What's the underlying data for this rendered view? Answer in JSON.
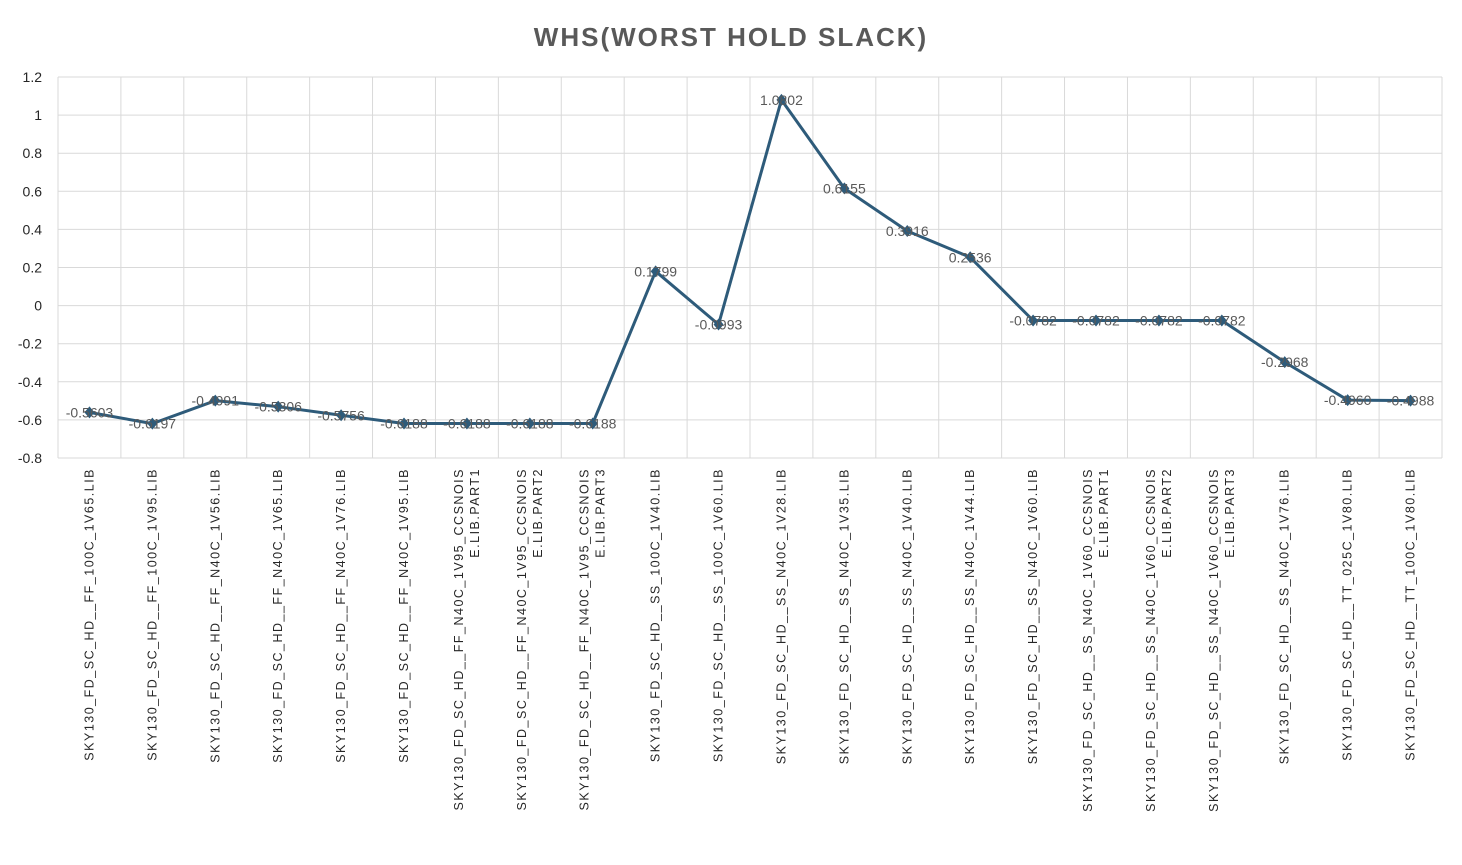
{
  "chart_data": {
    "type": "line",
    "title": "WHS(WORST HOLD SLACK)",
    "xlabel": "",
    "ylabel": "",
    "ylim": [
      -0.8,
      1.2
    ],
    "yticks": [
      "1.2",
      "1",
      "0.8",
      "0.6",
      "0.4",
      "0.2",
      "0",
      "-0.2",
      "-0.4",
      "-0.6",
      "-0.8"
    ],
    "ytick_values": [
      1.2,
      1,
      0.8,
      0.6,
      0.4,
      0.2,
      0,
      -0.2,
      -0.4,
      -0.6,
      -0.8
    ],
    "grid": true,
    "legend": "none",
    "colors": {
      "line": "#2e5b7a",
      "grid": "#d9d9d9",
      "text": "#262626",
      "title": "#595959"
    },
    "categories": [
      "SKY130_FD_SC_HD__FF_100C_1V65.LIB",
      "SKY130_FD_SC_HD__FF_100C_1V95.LIB",
      "SKY130_FD_SC_HD__FF_N40C_1V56.LIB",
      "SKY130_FD_SC_HD__FF_N40C_1V65.LIB",
      "SKY130_FD_SC_HD__FF_N40C_1V76.LIB",
      "SKY130_FD_SC_HD__FF_N40C_1V95.LIB",
      "SKY130_FD_SC_HD__FF_N40C_1V95_CCSNOISE.LIB.PART1",
      "SKY130_FD_SC_HD__FF_N40C_1V95_CCSNOISE.LIB.PART2",
      "SKY130_FD_SC_HD__FF_N40C_1V95_CCSNOISE.LIB.PART3",
      "SKY130_FD_SC_HD__SS_100C_1V40.LIB",
      "SKY130_FD_SC_HD__SS_100C_1V60.LIB",
      "SKY130_FD_SC_HD__SS_N40C_1V28.LIB",
      "SKY130_FD_SC_HD__SS_N40C_1V35.LIB",
      "SKY130_FD_SC_HD__SS_N40C_1V40.LIB",
      "SKY130_FD_SC_HD__SS_N40C_1V44.LIB",
      "SKY130_FD_SC_HD__SS_N40C_1V60.LIB",
      "SKY130_FD_SC_HD__SS_N40C_1V60_CCSNOISE.LIB.PART1",
      "SKY130_FD_SC_HD__SS_N40C_1V60_CCSNOISE.LIB.PART2",
      "SKY130_FD_SC_HD__SS_N40C_1V60_CCSNOISE.LIB.PART3",
      "SKY130_FD_SC_HD__SS_N40C_1V76.LIB",
      "SKY130_FD_SC_HD__TT_025C_1V80.LIB",
      "SKY130_FD_SC_HD__TT_100C_1V80.LIB"
    ],
    "category_lines": [
      [
        "SKY130_FD_SC_HD__FF_100C_1V65.LIB"
      ],
      [
        "SKY130_FD_SC_HD__FF_100C_1V95.LIB"
      ],
      [
        "SKY130_FD_SC_HD__FF_N40C_1V56.LIB"
      ],
      [
        "SKY130_FD_SC_HD__FF_N40C_1V65.LIB"
      ],
      [
        "SKY130_FD_SC_HD__FF_N40C_1V76.LIB"
      ],
      [
        "SKY130_FD_SC_HD__FF_N40C_1V95.LIB"
      ],
      [
        "SKY130_FD_SC_HD__FF_N40C_1V95_CCSNOIS",
        "E.LIB.PART1"
      ],
      [
        "SKY130_FD_SC_HD__FF_N40C_1V95_CCSNOIS",
        "E.LIB.PART2"
      ],
      [
        "SKY130_FD_SC_HD__FF_N40C_1V95_CCSNOIS",
        "E.LIB.PART3"
      ],
      [
        "SKY130_FD_SC_HD__SS_100C_1V40.LIB"
      ],
      [
        "SKY130_FD_SC_HD__SS_100C_1V60.LIB"
      ],
      [
        "SKY130_FD_SC_HD__SS_N40C_1V28.LIB"
      ],
      [
        "SKY130_FD_SC_HD__SS_N40C_1V35.LIB"
      ],
      [
        "SKY130_FD_SC_HD__SS_N40C_1V40.LIB"
      ],
      [
        "SKY130_FD_SC_HD__SS_N40C_1V44.LIB"
      ],
      [
        "SKY130_FD_SC_HD__SS_N40C_1V60.LIB"
      ],
      [
        "SKY130_FD_SC_HD__SS_N40C_1V60_CCSNOIS",
        "E.LIB.PART1"
      ],
      [
        "SKY130_FD_SC_HD__SS_N40C_1V60_CCSNOIS",
        "E.LIB.PART2"
      ],
      [
        "SKY130_FD_SC_HD__SS_N40C_1V60_CCSNOIS",
        "E.LIB.PART3"
      ],
      [
        "SKY130_FD_SC_HD__SS_N40C_1V76.LIB"
      ],
      [
        "SKY130_FD_SC_HD__TT_025C_1V80.LIB"
      ],
      [
        "SKY130_FD_SC_HD__TT_100C_1V80.LIB"
      ]
    ],
    "series": [
      {
        "values": [
          -0.5603,
          -0.6197,
          -0.4991,
          -0.5306,
          -0.5756,
          -0.6188,
          -0.6188,
          -0.6188,
          -0.6188,
          0.1799,
          -0.0993,
          1.0802,
          0.6155,
          0.3916,
          0.2536,
          -0.0782,
          -0.0782,
          -0.0782,
          -0.0782,
          -0.2968,
          -0.496,
          -0.4988
        ],
        "labels": [
          "-0.5603",
          "-0.6197",
          "-0.4991",
          "-0.5306",
          "-0.5756",
          "-0.6188",
          "-0.6188",
          "-0.6188",
          "-0.6188",
          "0.1799",
          "-0.0993",
          "1.0802",
          "0.6155",
          "0.3916",
          "0.2536",
          "-0.0782",
          "-0.0782",
          "-0.0782",
          "-0.0782",
          "-0.2968",
          "-0.4960",
          "-0.4988"
        ]
      }
    ]
  }
}
